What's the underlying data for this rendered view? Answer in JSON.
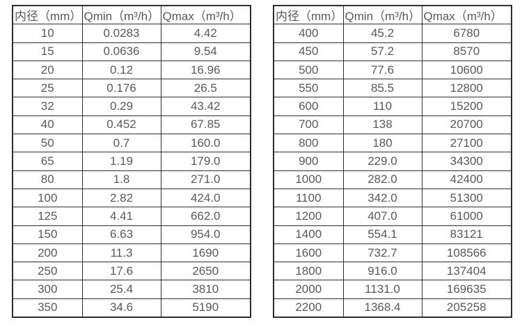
{
  "colors": {
    "border": "#2e2e2e",
    "text": "#595959",
    "background": "#ffffff"
  },
  "tables": [
    {
      "name": "small-diameter-flow-range",
      "headers": [
        "内径（mm）",
        "Qmin（m³/h）",
        "Qmax（m³/h）"
      ],
      "rows": [
        [
          "10",
          "0.0283",
          "4.42"
        ],
        [
          "15",
          "0.0636",
          "9.54"
        ],
        [
          "20",
          "0.12",
          "16.96"
        ],
        [
          "25",
          "0.176",
          "26.5"
        ],
        [
          "32",
          "0.29",
          "43.42"
        ],
        [
          "40",
          "0.452",
          "67.85"
        ],
        [
          "50",
          "0.7",
          "160.0"
        ],
        [
          "65",
          "1.19",
          "179.0"
        ],
        [
          "80",
          "1.8",
          "271.0"
        ],
        [
          "100",
          "2.82",
          "424.0"
        ],
        [
          "125",
          "4.41",
          "662.0"
        ],
        [
          "150",
          "6.63",
          "954.0"
        ],
        [
          "200",
          "11.3",
          "1690"
        ],
        [
          "250",
          "17.6",
          "2650"
        ],
        [
          "300",
          "25.4",
          "3810"
        ],
        [
          "350",
          "34.6",
          "5190"
        ]
      ]
    },
    {
      "name": "large-diameter-flow-range",
      "headers": [
        "内径（mm）",
        "Qmin（m³/h）",
        "Qmax（m³/h）"
      ],
      "rows": [
        [
          "400",
          "45.2",
          "6780"
        ],
        [
          "450",
          "57.2",
          "8570"
        ],
        [
          "500",
          "77.6",
          "10600"
        ],
        [
          "550",
          "85.5",
          "12800"
        ],
        [
          "600",
          "110",
          "15200"
        ],
        [
          "700",
          "138",
          "20700"
        ],
        [
          "800",
          "180",
          "27100"
        ],
        [
          "900",
          "229.0",
          "34300"
        ],
        [
          "1000",
          "282.0",
          "42400"
        ],
        [
          "1100",
          "342.0",
          "51300"
        ],
        [
          "1200",
          "407.0",
          "61000"
        ],
        [
          "1400",
          "554.1",
          "83121"
        ],
        [
          "1600",
          "732.7",
          "108566"
        ],
        [
          "1800",
          "916.0",
          "137404"
        ],
        [
          "2000",
          "1131.0",
          "169635"
        ],
        [
          "2200",
          "1368.4",
          "205258"
        ]
      ]
    }
  ]
}
